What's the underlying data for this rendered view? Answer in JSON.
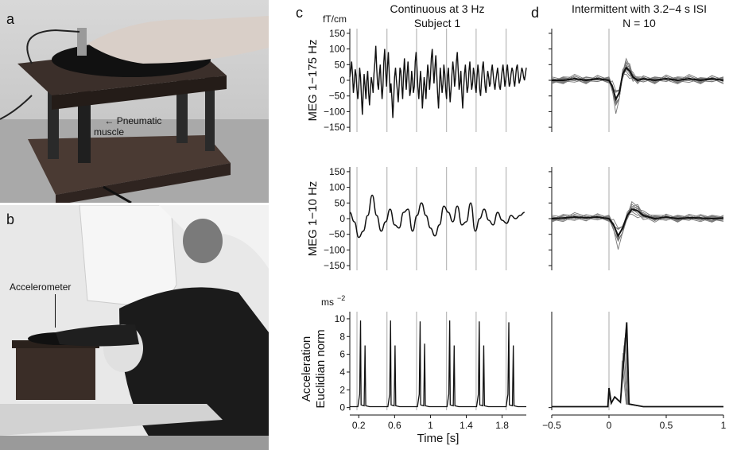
{
  "figure": {
    "panel_letters": [
      "a",
      "b",
      "c",
      "d"
    ],
    "photo_a": {
      "label": "Pneumatic\nmuscle"
    },
    "photo_b": {
      "label": "Accelerometer"
    },
    "panel_c": {
      "title_line1": "Continuous at 3 Hz",
      "title_line2": "Subject 1"
    },
    "panel_d": {
      "title_line1": "Intermittent with 3.2−4 s ISI",
      "title_line2": "N = 10"
    }
  },
  "chart_data": [
    {
      "id": "c-meg-175",
      "type": "line",
      "ylabel": "MEG 1−175 Hz",
      "unit": "fT/cm",
      "ylim": [
        -165,
        165
      ],
      "yticks": [
        150,
        100,
        50,
        0,
        -50,
        -100,
        -150
      ],
      "xlim": [
        0.1,
        2.07
      ],
      "stimulus_lines_x": [
        0.18,
        0.515,
        0.845,
        1.18,
        1.51,
        1.845
      ],
      "series": [
        {
          "x_start": 0.1,
          "x_step": 0.01,
          "values": [
            10,
            30,
            60,
            20,
            -40,
            -10,
            35,
            15,
            -30,
            -60,
            -20,
            40,
            10,
            -50,
            -110,
            -40,
            20,
            -20,
            -60,
            0,
            30,
            -40,
            -80,
            -30,
            10,
            -10,
            -40,
            20,
            60,
            110,
            40,
            -10,
            -30,
            20,
            50,
            -10,
            -60,
            -20,
            60,
            100,
            30,
            -20,
            40,
            90,
            20,
            -40,
            -10,
            -60,
            -120,
            -60,
            10,
            40,
            0,
            -30,
            -70,
            -20,
            40,
            30,
            -20,
            -60,
            20,
            70,
            10,
            -30,
            20,
            60,
            0,
            -50,
            -30,
            30,
            0,
            -40,
            -20,
            60,
            90,
            40,
            -20,
            -60,
            -10,
            30,
            -20,
            -90,
            -40,
            10,
            -20,
            -60,
            0,
            50,
            20,
            -30,
            10,
            70,
            100,
            40,
            -10,
            40,
            80,
            20,
            -40,
            -90,
            -20,
            40,
            0,
            -40,
            -10,
            50,
            20,
            -30,
            -60,
            10,
            40,
            -20,
            -70,
            -30,
            20,
            60,
            30,
            -20,
            10,
            60,
            90,
            30,
            -30,
            -10,
            30,
            -40,
            -90,
            -30,
            20,
            50,
            0,
            -40,
            -20,
            30,
            60,
            10,
            -30,
            -10,
            40,
            20,
            -20,
            -40,
            10,
            50,
            20,
            -30,
            -50,
            0,
            40,
            60,
            20,
            -20,
            -40,
            0,
            30,
            10,
            -20,
            -10,
            30,
            50,
            20,
            -10,
            -30,
            0,
            20,
            40,
            10,
            -20,
            -30,
            0,
            30,
            50,
            20,
            -20,
            0,
            30,
            50,
            10,
            -20,
            -10,
            20,
            40,
            30,
            0,
            -20,
            10,
            40,
            50,
            20,
            -10,
            0,
            20,
            40,
            30,
            10,
            0,
            20,
            40,
            50,
            30,
            10,
            20,
            40,
            60,
            30,
            10,
            30,
            50
          ]
        }
      ]
    },
    {
      "id": "c-meg-1-10",
      "type": "line",
      "ylabel": "MEG 1−10 Hz",
      "ylim": [
        -165,
        165
      ],
      "yticks": [
        150,
        100,
        50,
        0,
        -50,
        -100,
        -150
      ],
      "xlim": [
        0.1,
        2.07
      ],
      "stimulus_lines_x": [
        0.18,
        0.515,
        0.845,
        1.18,
        1.51,
        1.845
      ],
      "series": [
        {
          "x": [
            0.1,
            0.15,
            0.2,
            0.25,
            0.3,
            0.35,
            0.4,
            0.45,
            0.5,
            0.55,
            0.6,
            0.65,
            0.7,
            0.75,
            0.8,
            0.85,
            0.9,
            0.95,
            1.0,
            1.05,
            1.1,
            1.15,
            1.2,
            1.25,
            1.3,
            1.35,
            1.4,
            1.45,
            1.5,
            1.55,
            1.6,
            1.65,
            1.7,
            1.75,
            1.8,
            1.85,
            1.9,
            1.95,
            2.0,
            2.05
          ],
          "values": [
            20,
            -10,
            -60,
            -40,
            10,
            75,
            10,
            -40,
            -10,
            30,
            -20,
            -30,
            20,
            30,
            -40,
            10,
            50,
            10,
            -30,
            -55,
            -20,
            40,
            20,
            -10,
            40,
            -20,
            -10,
            50,
            -40,
            0,
            30,
            -5,
            -20,
            20,
            -5,
            -15,
            10,
            0,
            10,
            20
          ]
        }
      ]
    },
    {
      "id": "c-accel",
      "type": "line",
      "ylabel": "Acceleration\nEuclidian norm",
      "unit": "ms−2",
      "xlabel": "Time [s]",
      "ylim": [
        -0.3,
        10.8
      ],
      "yticks": [
        10,
        8,
        6,
        4,
        2,
        0
      ],
      "xlim": [
        0.1,
        2.07
      ],
      "xticks": [
        0.2,
        0.6,
        1,
        1.4,
        1.8
      ],
      "xticklabels": [
        "0.2",
        "0.6",
        "1",
        "1.4",
        "1.8"
      ],
      "stimulus_lines_x": [
        0.18,
        0.515,
        0.845,
        1.18,
        1.51,
        1.845
      ],
      "peaks": [
        {
          "t": 0.22,
          "a": 9.8,
          "b": 7.0
        },
        {
          "t": 0.555,
          "a": 9.8,
          "b": 7.0
        },
        {
          "t": 0.885,
          "a": 9.7,
          "b": 7.2
        },
        {
          "t": 1.215,
          "a": 9.8,
          "b": 7.0
        },
        {
          "t": 1.545,
          "a": 9.7,
          "b": 7.0
        },
        {
          "t": 1.875,
          "a": 9.6,
          "b": 7.0
        }
      ]
    },
    {
      "id": "d-meg-175",
      "type": "line",
      "ylim": [
        -165,
        165
      ],
      "xlim": [
        -0.5,
        1.0
      ],
      "stimulus_line_x": 0,
      "series_count": 10,
      "mean_series": {
        "x": [
          -0.5,
          -0.4,
          -0.3,
          -0.2,
          -0.1,
          0,
          0.03,
          0.06,
          0.09,
          0.12,
          0.15,
          0.18,
          0.21,
          0.25,
          0.3,
          0.4,
          0.5,
          0.6,
          0.7,
          0.8,
          0.9,
          1.0
        ],
        "values": [
          0,
          0,
          5,
          0,
          5,
          0,
          -20,
          -60,
          -40,
          20,
          40,
          30,
          10,
          0,
          5,
          0,
          5,
          0,
          5,
          0,
          5,
          0
        ]
      }
    },
    {
      "id": "d-meg-1-10",
      "type": "line",
      "ylim": [
        -165,
        165
      ],
      "xlim": [
        -0.5,
        1.0
      ],
      "stimulus_line_x": 0,
      "series_count": 10,
      "mean_series": {
        "x": [
          -0.5,
          -0.4,
          -0.3,
          -0.2,
          -0.1,
          0,
          0.04,
          0.08,
          0.12,
          0.16,
          0.2,
          0.25,
          0.3,
          0.4,
          0.5,
          0.6,
          0.7,
          0.8,
          0.9,
          1.0
        ],
        "values": [
          0,
          2,
          5,
          3,
          5,
          0,
          -20,
          -55,
          -30,
          10,
          30,
          25,
          10,
          0,
          5,
          0,
          3,
          2,
          0,
          2
        ]
      }
    },
    {
      "id": "d-accel",
      "type": "line",
      "xlabel": "",
      "ylim": [
        -0.3,
        10.8
      ],
      "xlim": [
        -0.5,
        1.0
      ],
      "xticks": [
        -0.5,
        0,
        0.5,
        1
      ],
      "xticklabels": [
        "−0.5",
        "0",
        "0.5",
        "1"
      ],
      "stimulus_line_x": 0,
      "peaks": [
        {
          "t": 0.0,
          "a": 2.0
        },
        {
          "t": 0.12,
          "a": 9.6
        }
      ]
    }
  ]
}
